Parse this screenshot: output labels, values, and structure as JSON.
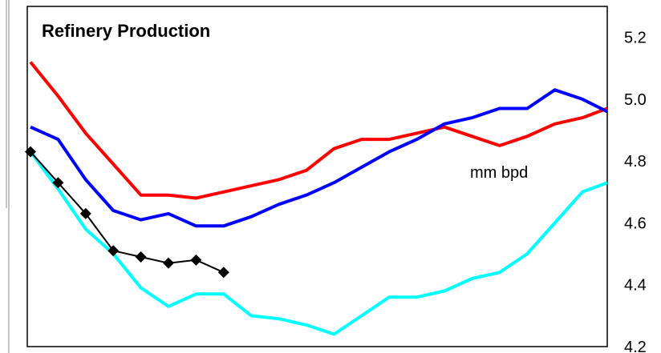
{
  "chart_data": {
    "type": "line",
    "title": "Refinery Production",
    "annotation": "mm bpd",
    "y_axis_position": "right",
    "ylim": [
      4.2,
      5.3
    ],
    "y_ticks": [
      "4.2",
      "4.4",
      "4.6",
      "4.8",
      "5.0",
      "5.2"
    ],
    "y_tick_values": [
      4.2,
      4.4,
      4.6,
      4.8,
      5.0,
      5.2
    ],
    "grid": false,
    "legend": "none",
    "x": [
      1,
      2,
      3,
      4,
      5,
      6,
      7,
      8,
      9,
      10,
      11,
      12,
      13,
      14,
      15,
      16,
      17,
      18,
      19,
      20,
      21,
      22,
      23
    ],
    "series": [
      {
        "color": "#ff0000",
        "marker": "none",
        "values": [
          5.12,
          5.01,
          4.89,
          4.79,
          4.69,
          4.69,
          4.68,
          4.7,
          4.72,
          4.74,
          4.77,
          4.84,
          4.87,
          4.87,
          4.89,
          4.91,
          4.88,
          4.85,
          4.88,
          4.92,
          4.94,
          4.97,
          null
        ]
      },
      {
        "color": "#0000ff",
        "marker": "none",
        "values": [
          4.91,
          4.87,
          4.74,
          4.64,
          4.61,
          4.63,
          4.59,
          4.59,
          4.62,
          4.66,
          4.69,
          4.73,
          4.78,
          4.83,
          4.87,
          4.92,
          4.94,
          4.97,
          4.97,
          5.03,
          5.0,
          4.96,
          null
        ]
      },
      {
        "color": "#00ffff",
        "marker": "none",
        "values": [
          4.83,
          4.71,
          4.58,
          4.5,
          4.39,
          4.33,
          4.37,
          4.37,
          4.3,
          4.29,
          4.27,
          4.24,
          4.3,
          4.36,
          4.36,
          4.38,
          4.42,
          4.44,
          4.5,
          4.6,
          4.7,
          4.73,
          null
        ]
      },
      {
        "color": "#000000",
        "marker": "diamond",
        "values": [
          4.83,
          4.73,
          4.63,
          4.51,
          4.49,
          4.47,
          4.48,
          4.44,
          null,
          null,
          null,
          null,
          null,
          null,
          null,
          null,
          null,
          null,
          null,
          null,
          null,
          null,
          null
        ]
      }
    ]
  }
}
